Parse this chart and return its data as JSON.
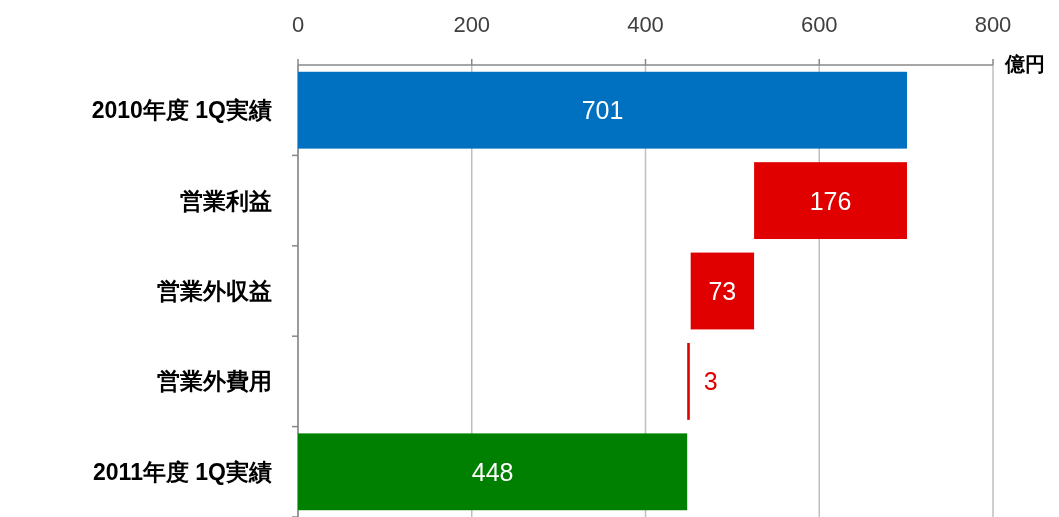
{
  "chart_data": {
    "type": "bar",
    "orientation": "horizontal",
    "xlabel": "億円",
    "categories": [
      "2010年度 1Q実績",
      "営業利益",
      "営業外収益",
      "営業外費用",
      "2011年度 1Q実績"
    ],
    "values": [
      701,
      176,
      73,
      3,
      448
    ],
    "base": [
      0,
      525,
      452,
      448,
      0
    ],
    "colors": [
      "#0070c0",
      "#e00000",
      "#e00000",
      "#e00000",
      "#008000"
    ],
    "xlim": [
      0,
      800
    ],
    "xticks": [
      0,
      200,
      400,
      600,
      800
    ],
    "grid": "x",
    "data_labels": true
  }
}
